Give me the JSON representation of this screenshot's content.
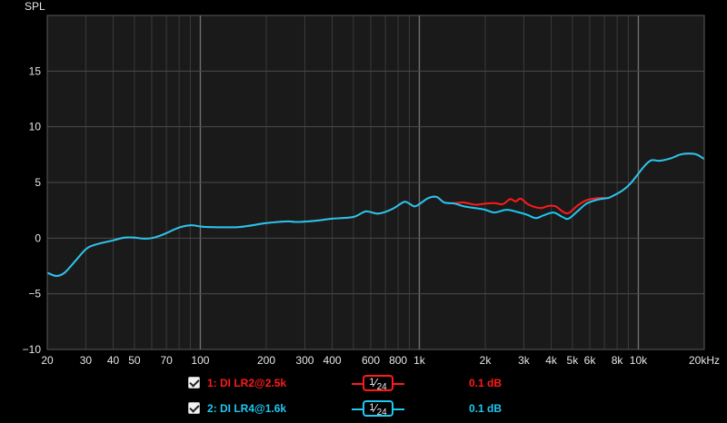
{
  "chart_data": {
    "type": "line",
    "ylabel": "SPL",
    "xscale": "log",
    "xlim": [
      20,
      20000
    ],
    "ylim": [
      -10,
      20
    ],
    "grid": true,
    "x_ticks": [
      {
        "value": 20,
        "label": "20"
      },
      {
        "value": 30,
        "label": "30"
      },
      {
        "value": 40,
        "label": "40"
      },
      {
        "value": 50,
        "label": "50"
      },
      {
        "value": 70,
        "label": "70"
      },
      {
        "value": 100,
        "label": "100"
      },
      {
        "value": 200,
        "label": "200"
      },
      {
        "value": 300,
        "label": "300"
      },
      {
        "value": 400,
        "label": "400"
      },
      {
        "value": 600,
        "label": "600"
      },
      {
        "value": 800,
        "label": "800"
      },
      {
        "value": 1000,
        "label": "1k"
      },
      {
        "value": 2000,
        "label": "2k"
      },
      {
        "value": 3000,
        "label": "3k"
      },
      {
        "value": 4000,
        "label": "4k"
      },
      {
        "value": 5000,
        "label": "5k"
      },
      {
        "value": 6000,
        "label": "6k"
      },
      {
        "value": 8000,
        "label": "8k"
      },
      {
        "value": 10000,
        "label": "10k"
      },
      {
        "value": 20000,
        "label": "20kHz"
      }
    ],
    "y_ticks": [
      {
        "value": 15,
        "label": "15"
      },
      {
        "value": 10,
        "label": "10"
      },
      {
        "value": 5,
        "label": "5"
      },
      {
        "value": 0,
        "label": "0"
      },
      {
        "value": -5,
        "label": "−5"
      },
      {
        "value": -10,
        "label": "−10"
      }
    ],
    "series": [
      {
        "name": "1: DI LR2@2.5k",
        "color": "#ff1a1a",
        "points": [
          [
            20,
            -3.1
          ],
          [
            22,
            -3.4
          ],
          [
            24,
            -3.1
          ],
          [
            27,
            -2.0
          ],
          [
            30,
            -1.0
          ],
          [
            33,
            -0.6
          ],
          [
            40,
            -0.2
          ],
          [
            45,
            0.05
          ],
          [
            50,
            0.05
          ],
          [
            55,
            -0.05
          ],
          [
            60,
            0.0
          ],
          [
            65,
            0.2
          ],
          [
            70,
            0.45
          ],
          [
            80,
            0.95
          ],
          [
            90,
            1.15
          ],
          [
            100,
            1.05
          ],
          [
            110,
            1.0
          ],
          [
            150,
            1.0
          ],
          [
            200,
            1.35
          ],
          [
            250,
            1.5
          ],
          [
            280,
            1.45
          ],
          [
            350,
            1.6
          ],
          [
            400,
            1.75
          ],
          [
            500,
            1.9
          ],
          [
            570,
            2.4
          ],
          [
            650,
            2.2
          ],
          [
            750,
            2.6
          ],
          [
            850,
            3.25
          ],
          [
            900,
            3.1
          ],
          [
            950,
            2.85
          ],
          [
            1000,
            3.05
          ],
          [
            1100,
            3.6
          ],
          [
            1200,
            3.7
          ],
          [
            1300,
            3.2
          ],
          [
            1450,
            3.15
          ],
          [
            1600,
            3.2
          ],
          [
            1800,
            3.0
          ],
          [
            2000,
            3.1
          ],
          [
            2200,
            3.15
          ],
          [
            2400,
            3.05
          ],
          [
            2600,
            3.5
          ],
          [
            2750,
            3.3
          ],
          [
            2900,
            3.55
          ],
          [
            3100,
            3.1
          ],
          [
            3300,
            2.85
          ],
          [
            3600,
            2.7
          ],
          [
            3900,
            2.9
          ],
          [
            4200,
            2.85
          ],
          [
            4500,
            2.4
          ],
          [
            4800,
            2.25
          ],
          [
            5300,
            2.95
          ],
          [
            5800,
            3.4
          ],
          [
            6500,
            3.6
          ],
          [
            7200,
            3.6
          ],
          [
            7500,
            3.7
          ],
          [
            8500,
            4.3
          ],
          [
            9200,
            4.9
          ],
          [
            10000,
            5.8
          ],
          [
            10800,
            6.6
          ],
          [
            11500,
            7.0
          ],
          [
            12500,
            6.95
          ],
          [
            14000,
            7.15
          ],
          [
            15500,
            7.5
          ],
          [
            17000,
            7.6
          ],
          [
            18500,
            7.5
          ],
          [
            20000,
            7.1
          ]
        ]
      },
      {
        "name": "2: DI LR4@1.6k",
        "color": "#1ec8f0",
        "points": [
          [
            20,
            -3.1
          ],
          [
            22,
            -3.4
          ],
          [
            24,
            -3.1
          ],
          [
            27,
            -2.0
          ],
          [
            30,
            -1.0
          ],
          [
            33,
            -0.6
          ],
          [
            40,
            -0.2
          ],
          [
            45,
            0.05
          ],
          [
            50,
            0.05
          ],
          [
            55,
            -0.05
          ],
          [
            60,
            0.0
          ],
          [
            65,
            0.2
          ],
          [
            70,
            0.45
          ],
          [
            80,
            0.95
          ],
          [
            90,
            1.15
          ],
          [
            100,
            1.05
          ],
          [
            110,
            1.0
          ],
          [
            150,
            1.0
          ],
          [
            200,
            1.35
          ],
          [
            250,
            1.5
          ],
          [
            280,
            1.45
          ],
          [
            350,
            1.6
          ],
          [
            400,
            1.75
          ],
          [
            500,
            1.9
          ],
          [
            570,
            2.4
          ],
          [
            650,
            2.2
          ],
          [
            750,
            2.6
          ],
          [
            850,
            3.25
          ],
          [
            900,
            3.1
          ],
          [
            950,
            2.85
          ],
          [
            1000,
            3.05
          ],
          [
            1100,
            3.6
          ],
          [
            1200,
            3.7
          ],
          [
            1300,
            3.2
          ],
          [
            1450,
            3.1
          ],
          [
            1600,
            2.85
          ],
          [
            1800,
            2.7
          ],
          [
            2000,
            2.55
          ],
          [
            2200,
            2.3
          ],
          [
            2500,
            2.55
          ],
          [
            2800,
            2.35
          ],
          [
            3100,
            2.1
          ],
          [
            3400,
            1.8
          ],
          [
            3700,
            2.05
          ],
          [
            4100,
            2.3
          ],
          [
            4500,
            1.9
          ],
          [
            4800,
            1.75
          ],
          [
            5300,
            2.45
          ],
          [
            5800,
            3.1
          ],
          [
            6500,
            3.45
          ],
          [
            7200,
            3.6
          ],
          [
            7500,
            3.7
          ],
          [
            8500,
            4.3
          ],
          [
            9200,
            4.9
          ],
          [
            10000,
            5.8
          ],
          [
            10800,
            6.6
          ],
          [
            11500,
            7.0
          ],
          [
            12500,
            6.95
          ],
          [
            14000,
            7.15
          ],
          [
            15500,
            7.5
          ],
          [
            17000,
            7.6
          ],
          [
            18500,
            7.5
          ],
          [
            20000,
            7.1
          ]
        ]
      }
    ]
  },
  "legend": [
    {
      "label": "1: DI LR2@2.5k",
      "smoothing_num": "1",
      "smoothing_den": "24",
      "offset": "0.1 dB",
      "color": "#ff1a1a",
      "checked": true
    },
    {
      "label": "2: DI LR4@1.6k",
      "smoothing_num": "1",
      "smoothing_den": "24",
      "offset": "0.1 dB",
      "color": "#1ec8f0",
      "checked": true
    }
  ]
}
